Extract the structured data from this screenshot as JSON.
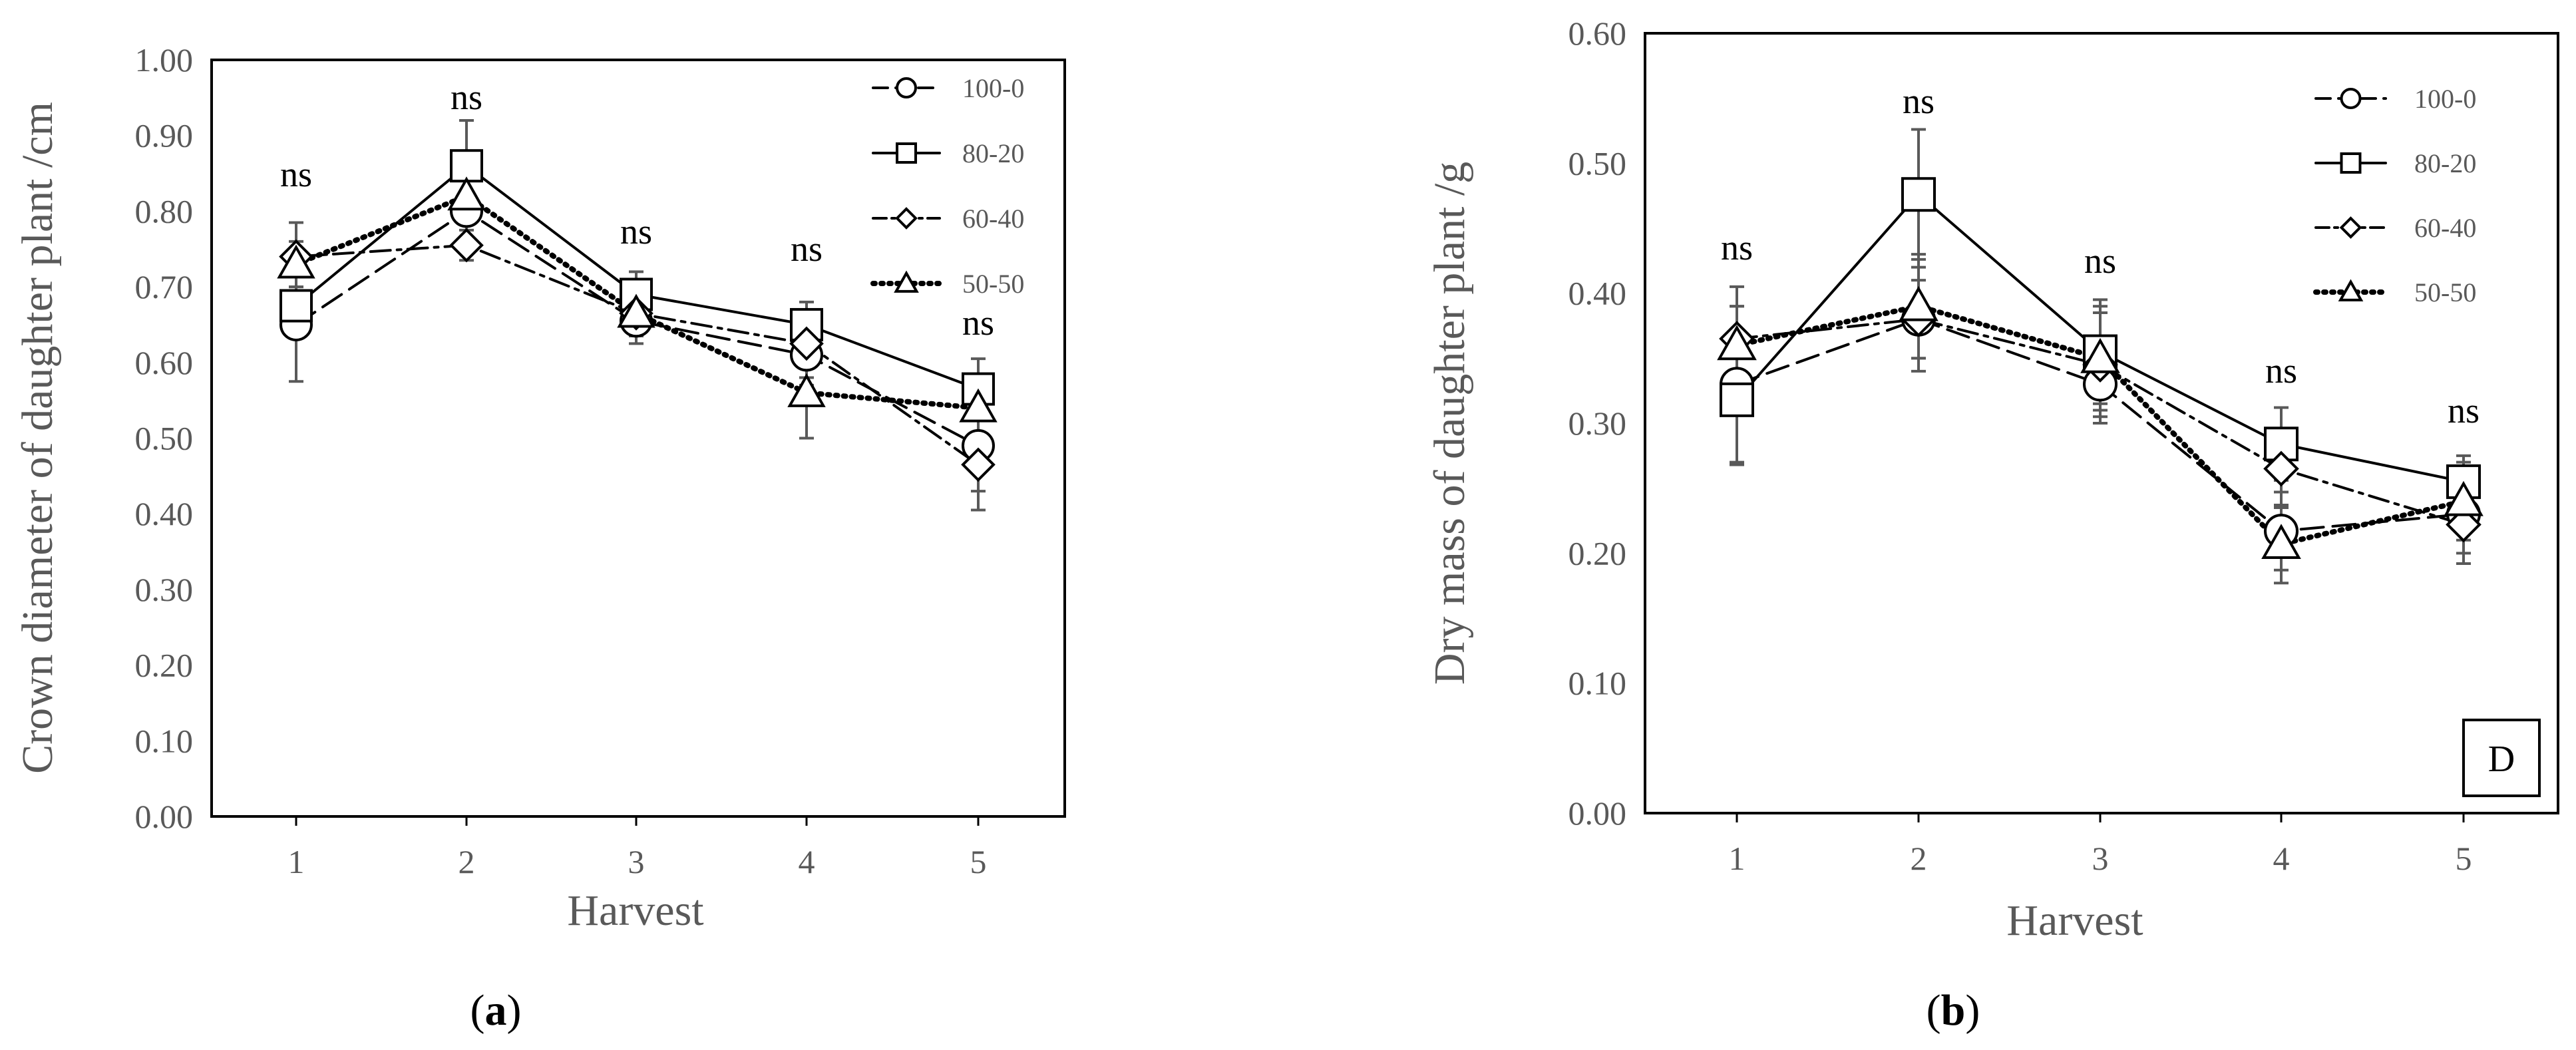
{
  "figure": {
    "panels": [
      {
        "label_open": "(",
        "label_letter": "a",
        "label_close": ")"
      },
      {
        "label_open": "(",
        "label_letter": "b",
        "label_close": ")",
        "corner_tag": "D"
      }
    ]
  },
  "chart_data": [
    {
      "type": "line",
      "title": "",
      "xlabel": "Harvest",
      "ylabel": "Crown diameter of daughter plant /cm",
      "x": [
        1,
        2,
        3,
        4,
        5
      ],
      "ylim": [
        0.0,
        1.0
      ],
      "yticks": [
        "0.00",
        "0.10",
        "0.20",
        "0.30",
        "0.40",
        "0.50",
        "0.60",
        "0.70",
        "0.80",
        "0.90",
        "1.00"
      ],
      "legend_position": "top-right",
      "grid": false,
      "significance": [
        "ns",
        "ns",
        "ns",
        "ns",
        "ns"
      ],
      "series": [
        {
          "name": "100-0",
          "marker": "circle",
          "dash": "longdash",
          "values": [
            0.65,
            0.8,
            0.655,
            0.61,
            0.49
          ],
          "error": [
            0.075,
            0.04,
            0.03,
            0.04,
            0.06
          ]
        },
        {
          "name": "80-20",
          "marker": "square",
          "dash": "solid",
          "values": [
            0.675,
            0.86,
            0.69,
            0.65,
            0.565
          ],
          "error": [
            0.025,
            0.06,
            0.03,
            0.03,
            0.04
          ]
        },
        {
          "name": "60-40",
          "marker": "diamond",
          "dash": "dashdot",
          "values": [
            0.74,
            0.755,
            0.665,
            0.625,
            0.465
          ],
          "error": [
            0.045,
            0.02,
            0.03,
            0.045,
            0.06
          ]
        },
        {
          "name": "50-50",
          "marker": "triangle",
          "dash": "dotted",
          "values": [
            0.73,
            0.82,
            0.665,
            0.56,
            0.54
          ],
          "error": [
            0.03,
            0.03,
            0.03,
            0.06,
            0.04
          ]
        }
      ]
    },
    {
      "type": "line",
      "title": "",
      "xlabel": "Harvest",
      "ylabel": "Dry mass of daughter plant /g",
      "x": [
        1,
        2,
        3,
        4,
        5
      ],
      "ylim": [
        0.0,
        0.6
      ],
      "yticks": [
        "0.00",
        "0.10",
        "0.20",
        "0.30",
        "0.40",
        "0.50",
        "0.60"
      ],
      "legend_position": "top-right",
      "grid": false,
      "significance": [
        "ns",
        "ns",
        "ns",
        "ns",
        "ns"
      ],
      "series": [
        {
          "name": "100-0",
          "marker": "circle",
          "dash": "longdash",
          "values": [
            0.33,
            0.38,
            0.33,
            0.217,
            0.23
          ],
          "error": [
            0.06,
            0.03,
            0.03,
            0.03,
            0.03
          ]
        },
        {
          "name": "80-20",
          "marker": "square",
          "dash": "solid",
          "values": [
            0.318,
            0.476,
            0.355,
            0.284,
            0.255
          ],
          "error": [
            0.05,
            0.05,
            0.04,
            0.028,
            0.02
          ]
        },
        {
          "name": "60-40",
          "marker": "diamond",
          "dash": "dashdot",
          "values": [
            0.365,
            0.38,
            0.345,
            0.265,
            0.222
          ],
          "error": [
            0.04,
            0.04,
            0.04,
            0.03,
            0.03
          ]
        },
        {
          "name": "50-50",
          "marker": "triangle",
          "dash": "dotted",
          "values": [
            0.36,
            0.39,
            0.35,
            0.207,
            0.24
          ],
          "error": [
            0.03,
            0.04,
            0.04,
            0.03,
            0.03
          ]
        }
      ]
    }
  ]
}
